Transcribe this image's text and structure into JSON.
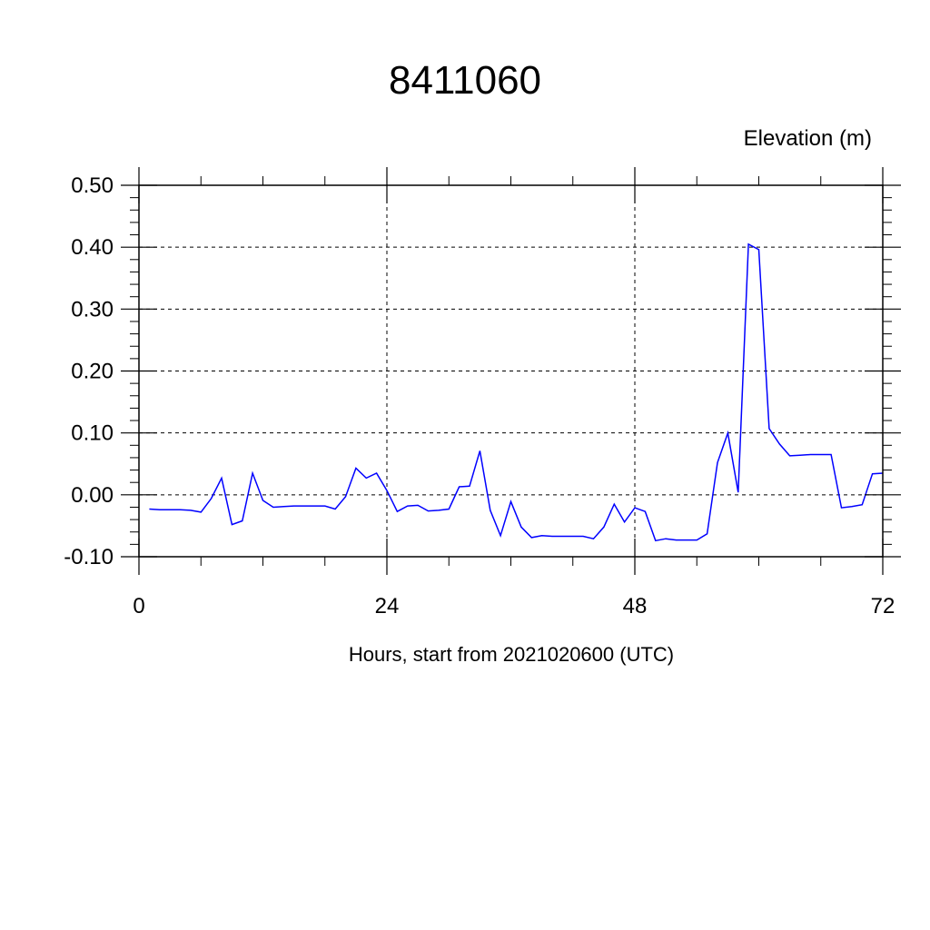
{
  "chart_data": {
    "type": "line",
    "title": "8411060",
    "ylabel": "Elevation (m)",
    "xlabel": "Hours, start from 2021020600 (UTC)",
    "xlim": [
      0,
      72
    ],
    "ylim": [
      -0.1,
      0.5
    ],
    "xticks": [
      0,
      24,
      48,
      72
    ],
    "xtick_labels": [
      "0",
      "24",
      "48",
      "72"
    ],
    "yticks": [
      -0.1,
      0.0,
      0.1,
      0.2,
      0.3,
      0.4,
      0.5
    ],
    "ytick_labels": [
      "-0.10",
      "0.00",
      "0.10",
      "0.20",
      "0.30",
      "0.40",
      "0.50"
    ],
    "grid": true,
    "line_color": "#0000ff",
    "series": [
      {
        "x": [
          1,
          2,
          3,
          4,
          5,
          6,
          7,
          8,
          9,
          10,
          11,
          12,
          13,
          14,
          15,
          16,
          17,
          18,
          19,
          20,
          21,
          22,
          23,
          24,
          25,
          26,
          27,
          28,
          29,
          30,
          31,
          32,
          33,
          34,
          35,
          36,
          37,
          38,
          39,
          40,
          41,
          42,
          43,
          44,
          45,
          46,
          47,
          48,
          49,
          50,
          51,
          52,
          53,
          54,
          55,
          56,
          57,
          58,
          59,
          60,
          61,
          62,
          63,
          64,
          65,
          66,
          67,
          68,
          69,
          70,
          71,
          72
        ],
        "y": [
          -0.023,
          -0.024,
          -0.024,
          -0.024,
          -0.025,
          -0.028,
          -0.006,
          0.027,
          -0.048,
          -0.042,
          0.035,
          -0.009,
          -0.02,
          -0.019,
          -0.018,
          -0.018,
          -0.018,
          -0.018,
          -0.023,
          -0.003,
          0.043,
          0.027,
          0.035,
          0.007,
          -0.027,
          -0.018,
          -0.017,
          -0.026,
          -0.025,
          -0.023,
          0.013,
          0.014,
          0.071,
          -0.025,
          -0.066,
          -0.011,
          -0.052,
          -0.069,
          -0.066,
          -0.067,
          -0.067,
          -0.067,
          -0.067,
          -0.071,
          -0.052,
          -0.015,
          -0.044,
          -0.021,
          -0.027,
          -0.074,
          -0.071,
          -0.073,
          -0.073,
          -0.073,
          -0.063,
          0.052,
          0.1,
          0.004,
          0.405,
          0.396,
          0.107,
          0.082,
          0.063,
          0.064,
          0.065,
          0.065,
          0.065,
          -0.021,
          -0.019,
          -0.016,
          0.034,
          0.035
        ]
      }
    ]
  }
}
